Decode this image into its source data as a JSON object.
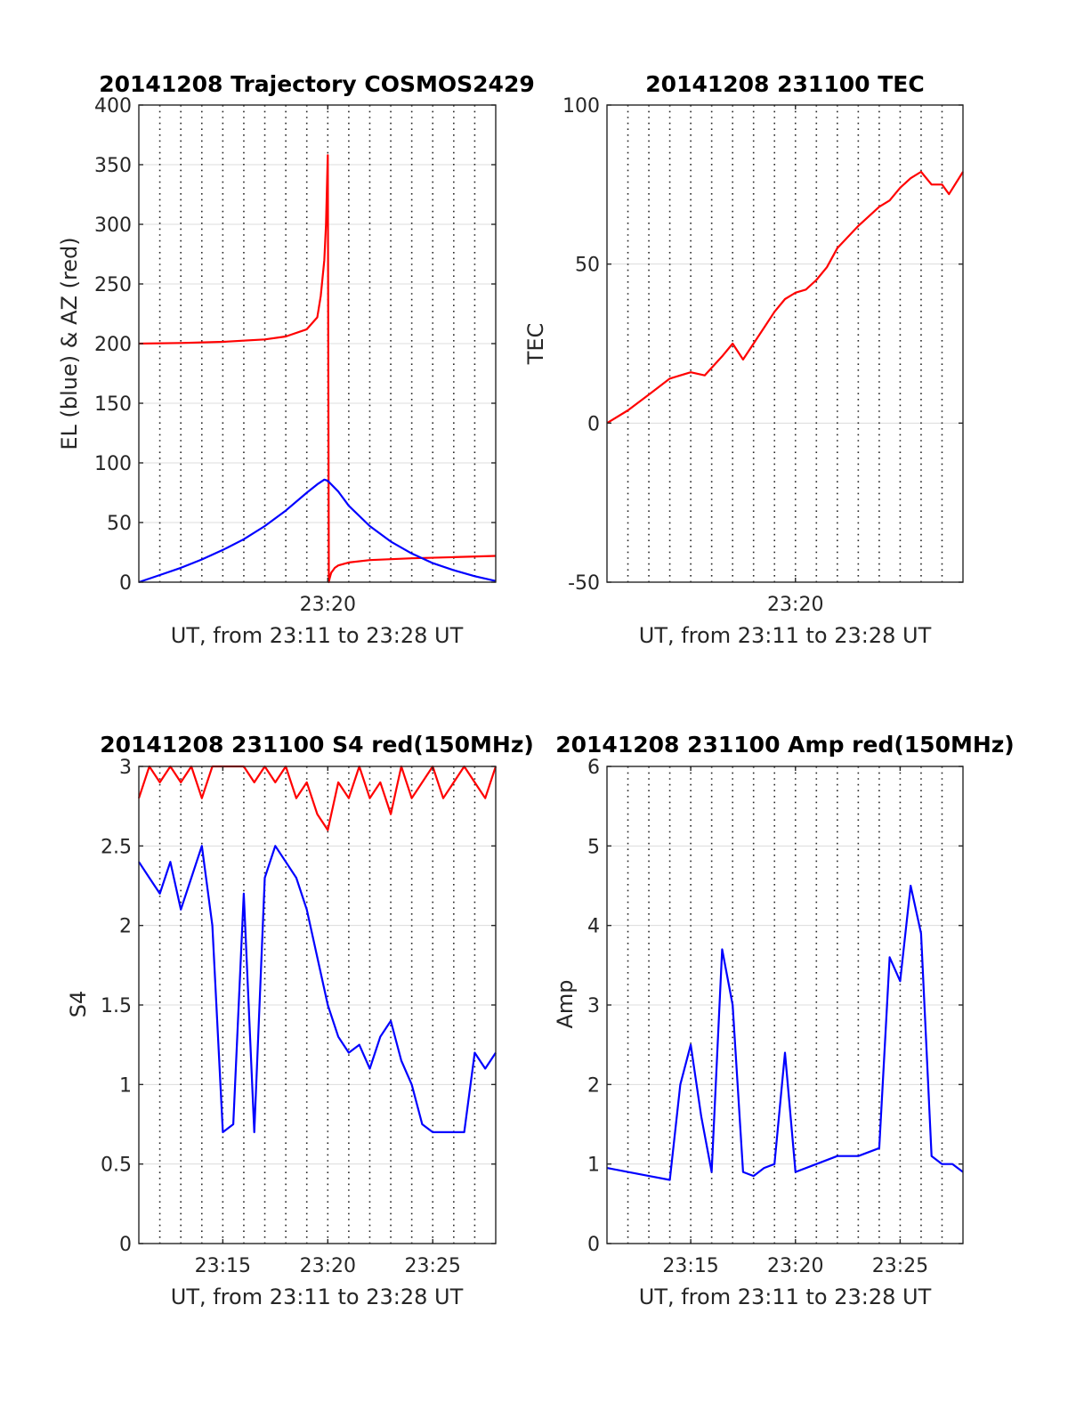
{
  "chart_data": [
    {
      "type": "line",
      "title": "20141208 Trajectory COSMOS2429",
      "xlabel": "UT, from 23:11 to 23:28 UT",
      "ylabel": "EL (blue) & AZ (red)",
      "xlim": [
        "23:11",
        "23:28"
      ],
      "ylim": [
        0,
        400
      ],
      "xticks": [
        {
          "t": "23:20",
          "label": "23:20"
        }
      ],
      "yticks": [
        0,
        50,
        100,
        150,
        200,
        250,
        300,
        350,
        400
      ],
      "grid": true,
      "series": [
        {
          "color": "#ff0000",
          "x": [
            "23:11:00",
            "23:13:00",
            "23:15:00",
            "23:17:00",
            "23:18:00",
            "23:19:00",
            "23:19:30",
            "23:19:40",
            "23:19:50",
            "23:19:55",
            "23:19:58",
            "23:20:00",
            "23:20:03",
            "23:20:05",
            "23:20:08",
            "23:20:10",
            "23:20:15",
            "23:20:20",
            "23:20:30",
            "23:21:00",
            "23:22:00",
            "23:24:00",
            "23:26:00",
            "23:28:00"
          ],
          "y": [
            200,
            200.5,
            201.5,
            203.5,
            206,
            212,
            222,
            240,
            270,
            300,
            335,
            358,
            0,
            3,
            6,
            8,
            10,
            12,
            14,
            16.5,
            18.5,
            20,
            21,
            22
          ]
        },
        {
          "color": "#0000ff",
          "x": [
            "23:11:00",
            "23:12:00",
            "23:13:00",
            "23:14:00",
            "23:15:00",
            "23:16:00",
            "23:17:00",
            "23:18:00",
            "23:19:00",
            "23:19:30",
            "23:19:50",
            "23:20:00",
            "23:20:30",
            "23:21:00",
            "23:22:00",
            "23:23:00",
            "23:24:00",
            "23:25:00",
            "23:26:00",
            "23:27:00",
            "23:28:00"
          ],
          "y": [
            0,
            6,
            12,
            19,
            27,
            36,
            47,
            60,
            75,
            82,
            86,
            85,
            76,
            64,
            47,
            34,
            24,
            16,
            10,
            5,
            1
          ]
        }
      ]
    },
    {
      "type": "line",
      "title": "20141208 231100 TEC",
      "xlabel": "UT, from 23:11 to 23:28 UT",
      "ylabel": "TEC",
      "xlim": [
        "23:11",
        "23:28"
      ],
      "ylim": [
        -50,
        100
      ],
      "xticks": [
        {
          "t": "23:20",
          "label": "23:20"
        }
      ],
      "yticks": [
        -50,
        0,
        50,
        100
      ],
      "grid": true,
      "series": [
        {
          "color": "#ff0000",
          "x": [
            "23:11:00",
            "23:12:00",
            "23:13:00",
            "23:14:00",
            "23:15:00",
            "23:15:40",
            "23:16:30",
            "23:17:00",
            "23:17:30",
            "23:18:00",
            "23:18:30",
            "23:19:00",
            "23:19:30",
            "23:20:00",
            "23:20:30",
            "23:21:00",
            "23:21:30",
            "23:22:00",
            "23:23:00",
            "23:24:00",
            "23:24:30",
            "23:25:00",
            "23:25:30",
            "23:26:00",
            "23:26:30",
            "23:27:00",
            "23:27:20",
            "23:28:00"
          ],
          "y": [
            0,
            4,
            9,
            14,
            16,
            15,
            21,
            25,
            20,
            25,
            30,
            35,
            39,
            41,
            42,
            45,
            49,
            55,
            62,
            68,
            70,
            74,
            77,
            79,
            75,
            75,
            72,
            79
          ]
        }
      ]
    },
    {
      "type": "line",
      "title": "20141208 231100 S4 red(150MHz)",
      "xlabel": "UT, from 23:11 to 23:28 UT",
      "ylabel": "S4",
      "xlim": [
        "23:11",
        "23:28"
      ],
      "ylim": [
        0,
        3
      ],
      "xticks": [
        {
          "t": "23:15",
          "label": "23:15"
        },
        {
          "t": "23:20",
          "label": "23:20"
        },
        {
          "t": "23:25",
          "label": "23:25"
        }
      ],
      "yticks": [
        0,
        0.5,
        1,
        1.5,
        2,
        2.5,
        3
      ],
      "grid": true,
      "series": [
        {
          "color": "#ff0000",
          "x": [
            "23:11:00",
            "23:11:30",
            "23:12:00",
            "23:12:30",
            "23:13:00",
            "23:13:30",
            "23:14:00",
            "23:14:30",
            "23:15:00",
            "23:15:30",
            "23:16:00",
            "23:16:30",
            "23:17:00",
            "23:17:30",
            "23:18:00",
            "23:18:30",
            "23:19:00",
            "23:19:30",
            "23:20:00",
            "23:20:30",
            "23:21:00",
            "23:21:30",
            "23:22:00",
            "23:22:30",
            "23:23:00",
            "23:23:30",
            "23:24:00",
            "23:24:30",
            "23:25:00",
            "23:25:30",
            "23:26:00",
            "23:26:30",
            "23:27:00",
            "23:27:30",
            "23:28:00"
          ],
          "y": [
            2.8,
            3,
            2.9,
            3,
            2.9,
            3,
            2.8,
            3,
            3,
            3,
            3,
            2.9,
            3,
            2.9,
            3,
            2.8,
            2.9,
            2.7,
            2.6,
            2.9,
            2.8,
            3,
            2.8,
            2.9,
            2.7,
            3,
            2.8,
            2.9,
            3,
            2.8,
            2.9,
            3,
            2.9,
            2.8,
            3
          ]
        },
        {
          "color": "#0000ff",
          "x": [
            "23:11:00",
            "23:11:30",
            "23:12:00",
            "23:12:30",
            "23:13:00",
            "23:13:30",
            "23:14:00",
            "23:14:30",
            "23:15:00",
            "23:15:30",
            "23:16:00",
            "23:16:30",
            "23:17:00",
            "23:17:30",
            "23:18:00",
            "23:18:30",
            "23:19:00",
            "23:19:30",
            "23:20:00",
            "23:20:30",
            "23:21:00",
            "23:21:30",
            "23:22:00",
            "23:22:30",
            "23:23:00",
            "23:23:30",
            "23:24:00",
            "23:24:30",
            "23:25:00",
            "23:25:30",
            "23:26:00",
            "23:26:30",
            "23:27:00",
            "23:27:30",
            "23:28:00"
          ],
          "y": [
            2.4,
            2.3,
            2.2,
            2.4,
            2.1,
            2.3,
            2.5,
            2.0,
            0.7,
            0.75,
            2.2,
            0.7,
            2.3,
            2.5,
            2.4,
            2.3,
            2.1,
            1.8,
            1.5,
            1.3,
            1.2,
            1.25,
            1.1,
            1.3,
            1.4,
            1.15,
            1.0,
            0.75,
            0.7,
            0.7,
            0.7,
            0.7,
            1.2,
            1.1,
            1.2
          ]
        }
      ]
    },
    {
      "type": "line",
      "title": "20141208 231100 Amp red(150MHz)",
      "xlabel": "UT, from 23:11 to 23:28 UT",
      "ylabel": "Amp",
      "xlim": [
        "23:11",
        "23:28"
      ],
      "ylim": [
        0,
        6
      ],
      "xticks": [
        {
          "t": "23:15",
          "label": "23:15"
        },
        {
          "t": "23:20",
          "label": "23:20"
        },
        {
          "t": "23:25",
          "label": "23:25"
        }
      ],
      "yticks": [
        0,
        1,
        2,
        3,
        4,
        5,
        6
      ],
      "grid": true,
      "series": [
        {
          "color": "#0000ff",
          "x": [
            "23:11:00",
            "23:12:00",
            "23:13:00",
            "23:14:00",
            "23:14:30",
            "23:15:00",
            "23:15:30",
            "23:16:00",
            "23:16:30",
            "23:17:00",
            "23:17:30",
            "23:18:00",
            "23:18:30",
            "23:19:00",
            "23:19:30",
            "23:20:00",
            "23:21:00",
            "23:22:00",
            "23:23:00",
            "23:24:00",
            "23:24:30",
            "23:25:00",
            "23:25:30",
            "23:26:00",
            "23:26:30",
            "23:27:00",
            "23:27:30",
            "23:28:00"
          ],
          "y": [
            0.95,
            0.9,
            0.85,
            0.8,
            2.0,
            2.5,
            1.6,
            0.9,
            3.7,
            3.0,
            0.9,
            0.85,
            0.95,
            1.0,
            2.4,
            0.9,
            1.0,
            1.1,
            1.1,
            1.2,
            3.6,
            3.3,
            4.5,
            3.9,
            1.1,
            1.0,
            1.0,
            0.9
          ]
        }
      ]
    }
  ]
}
